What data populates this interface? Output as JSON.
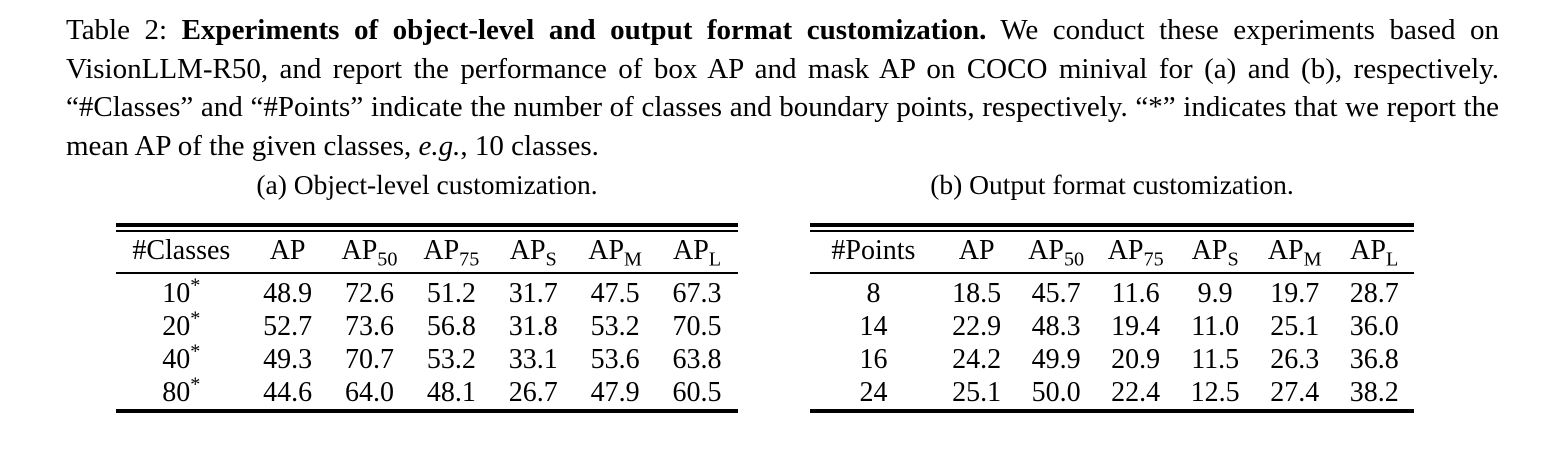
{
  "caption": {
    "label": "Table 2: ",
    "title_bold": "Experiments of object-level and output format customization.",
    "body_1": "  We conduct these experiments based on VisionLLM-R50, and report the performance of box AP and mask AP on COCO minival for (a) and (b), respectively. “#Classes” and “#Points” indicate the number of classes and boundary points, respectively. “*” indicates that we report the mean AP of the given classes, ",
    "italic_eg": "e.g.",
    "body_2": ", 10 classes."
  },
  "subtables": [
    {
      "caption": "(a) Object-level customization.",
      "columns": [
        {
          "base": "#Classes",
          "sub": ""
        },
        {
          "base": "AP",
          "sub": ""
        },
        {
          "base": "AP",
          "sub": "50"
        },
        {
          "base": "AP",
          "sub": "75"
        },
        {
          "base": "AP",
          "sub": "S"
        },
        {
          "base": "AP",
          "sub": "M"
        },
        {
          "base": "AP",
          "sub": "L"
        }
      ],
      "rows": [
        {
          "label": "10",
          "label_sup": "*",
          "values": [
            "48.9",
            "72.6",
            "51.2",
            "31.7",
            "47.5",
            "67.3"
          ]
        },
        {
          "label": "20",
          "label_sup": "*",
          "values": [
            "52.7",
            "73.6",
            "56.8",
            "31.8",
            "53.2",
            "70.5"
          ]
        },
        {
          "label": "40",
          "label_sup": "*",
          "values": [
            "49.3",
            "70.7",
            "53.2",
            "33.1",
            "53.6",
            "63.8"
          ]
        },
        {
          "label": "80",
          "label_sup": "*",
          "values": [
            "44.6",
            "64.0",
            "48.1",
            "26.7",
            "47.9",
            "60.5"
          ]
        }
      ]
    },
    {
      "caption": "(b) Output format customization.",
      "columns": [
        {
          "base": "#Points",
          "sub": ""
        },
        {
          "base": "AP",
          "sub": ""
        },
        {
          "base": "AP",
          "sub": "50"
        },
        {
          "base": "AP",
          "sub": "75"
        },
        {
          "base": "AP",
          "sub": "S"
        },
        {
          "base": "AP",
          "sub": "M"
        },
        {
          "base": "AP",
          "sub": "L"
        }
      ],
      "rows": [
        {
          "label": "8",
          "label_sup": "",
          "values": [
            "18.5",
            "45.7",
            "11.6",
            "9.9",
            "19.7",
            "28.7"
          ]
        },
        {
          "label": "14",
          "label_sup": "",
          "values": [
            "22.9",
            "48.3",
            "19.4",
            "11.0",
            "25.1",
            "36.0"
          ]
        },
        {
          "label": "16",
          "label_sup": "",
          "values": [
            "24.2",
            "49.9",
            "20.9",
            "11.5",
            "26.3",
            "36.8"
          ]
        },
        {
          "label": "24",
          "label_sup": "",
          "values": [
            "25.1",
            "50.0",
            "22.4",
            "12.5",
            "27.4",
            "38.2"
          ]
        }
      ]
    }
  ],
  "chart_data": [
    {
      "type": "table",
      "title": "(a) Object-level customization.",
      "columns": [
        "#Classes",
        "AP",
        "AP50",
        "AP75",
        "APS",
        "APM",
        "APL"
      ],
      "rows": [
        [
          "10*",
          48.9,
          72.6,
          51.2,
          31.7,
          47.5,
          67.3
        ],
        [
          "20*",
          52.7,
          73.6,
          56.8,
          31.8,
          53.2,
          70.5
        ],
        [
          "40*",
          49.3,
          70.7,
          53.2,
          33.1,
          53.6,
          63.8
        ],
        [
          "80*",
          44.6,
          64.0,
          48.1,
          26.7,
          47.9,
          60.5
        ]
      ]
    },
    {
      "type": "table",
      "title": "(b) Output format customization.",
      "columns": [
        "#Points",
        "AP",
        "AP50",
        "AP75",
        "APS",
        "APM",
        "APL"
      ],
      "rows": [
        [
          "8",
          18.5,
          45.7,
          11.6,
          9.9,
          19.7,
          28.7
        ],
        [
          "14",
          22.9,
          48.3,
          19.4,
          11.0,
          25.1,
          36.0
        ],
        [
          "16",
          24.2,
          49.9,
          20.9,
          11.5,
          26.3,
          36.8
        ],
        [
          "24",
          25.1,
          50.0,
          22.4,
          12.5,
          27.4,
          38.2
        ]
      ]
    }
  ]
}
